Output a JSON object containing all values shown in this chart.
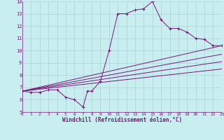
{
  "xlabel": "Windchill (Refroidissement éolien,°C)",
  "background_color": "#c8eef0",
  "line_color": "#7b1578",
  "grid_color": "#b0d8da",
  "xmin": 0,
  "xmax": 23,
  "ymin": 5,
  "ymax": 14,
  "yticks": [
    5,
    6,
    7,
    8,
    9,
    10,
    11,
    12,
    13,
    14
  ],
  "xticks": [
    0,
    1,
    2,
    3,
    4,
    5,
    6,
    7,
    8,
    9,
    10,
    11,
    12,
    13,
    14,
    15,
    16,
    17,
    18,
    19,
    20,
    21,
    22,
    23
  ],
  "series": [
    [
      0,
      6.7
    ],
    [
      1,
      6.6
    ],
    [
      2,
      6.6
    ],
    [
      3,
      6.8
    ],
    [
      4,
      6.8
    ],
    [
      5,
      6.2
    ],
    [
      6,
      6.0
    ],
    [
      7,
      5.4
    ],
    [
      7.5,
      6.7
    ],
    [
      8,
      6.7
    ],
    [
      9,
      7.5
    ],
    [
      10,
      10.0
    ],
    [
      11,
      13.0
    ],
    [
      12,
      13.0
    ],
    [
      13,
      13.3
    ],
    [
      14,
      13.4
    ],
    [
      15,
      14.0
    ],
    [
      16,
      12.5
    ],
    [
      17,
      11.8
    ],
    [
      18,
      11.8
    ],
    [
      19,
      11.5
    ],
    [
      20,
      11.0
    ],
    [
      21,
      10.9
    ],
    [
      22,
      10.4
    ],
    [
      23,
      10.4
    ]
  ],
  "straight_lines": [
    [
      [
        0,
        6.7
      ],
      [
        23,
        10.4
      ]
    ],
    [
      [
        0,
        6.7
      ],
      [
        23,
        9.7
      ]
    ],
    [
      [
        0,
        6.7
      ],
      [
        23,
        9.1
      ]
    ],
    [
      [
        0,
        6.7
      ],
      [
        23,
        8.5
      ]
    ]
  ]
}
